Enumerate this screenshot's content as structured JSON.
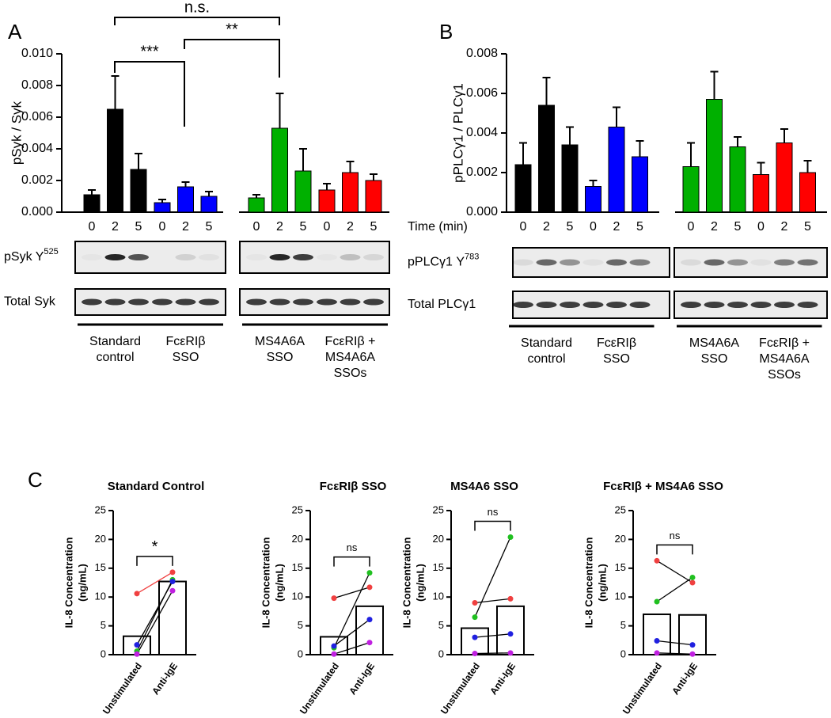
{
  "chart_data": [
    {
      "type": "bar",
      "panel_label": "A",
      "y_label": "pSyk / Syk",
      "ylim": [
        0,
        0.01
      ],
      "yticks": [
        {
          "value": 0,
          "label": "0.000"
        },
        {
          "value": 0.002,
          "label": "0.002"
        },
        {
          "value": 0.004,
          "label": "0.004"
        },
        {
          "value": 0.006,
          "label": "0.006"
        },
        {
          "value": 0.008,
          "label": "0.008"
        },
        {
          "value": 0.01,
          "label": "0.010"
        }
      ],
      "groups": [
        {
          "label": [
            "Standard",
            "control"
          ],
          "color": "#000000",
          "categories": [
            "0",
            "2",
            "5"
          ],
          "values": [
            0.0011,
            0.0065,
            0.0027
          ],
          "errors": [
            0.0003,
            0.0021,
            0.001
          ]
        },
        {
          "label": [
            "FcεRIβ",
            "SSO"
          ],
          "color": "#0000ff",
          "categories": [
            "0",
            "2",
            "5"
          ],
          "values": [
            0.0006,
            0.0016,
            0.001
          ],
          "errors": [
            0.0002,
            0.0003,
            0.0003
          ]
        },
        {
          "label": [
            "MS4A6A",
            "SSO"
          ],
          "color": "#00b000",
          "categories": [
            "0",
            "2",
            "5"
          ],
          "values": [
            0.0009,
            0.0053,
            0.0026
          ],
          "errors": [
            0.0002,
            0.0022,
            0.0014
          ]
        },
        {
          "label": [
            "FcεRIβ +",
            "MS4A6A",
            "SSOs"
          ],
          "color": "#ff0000",
          "categories": [
            "0",
            "2",
            "5"
          ],
          "values": [
            0.0014,
            0.0025,
            0.002
          ],
          "errors": [
            0.0004,
            0.0007,
            0.0004
          ]
        }
      ],
      "significance": [
        "n.s.",
        "***",
        "**"
      ],
      "blot_labels": [
        {
          "text": "pSyk Y",
          "sup": "525"
        },
        {
          "text": "Total Syk"
        }
      ]
    },
    {
      "type": "bar",
      "panel_label": "B",
      "y_label": "pPLCγ1 / PLCγ1",
      "x_label": "Time (min)",
      "ylim": [
        0,
        0.008
      ],
      "yticks": [
        {
          "value": 0,
          "label": "0.000"
        },
        {
          "value": 0.002,
          "label": "0.002"
        },
        {
          "value": 0.004,
          "label": "0.004"
        },
        {
          "value": 0.006,
          "label": "0.006"
        },
        {
          "value": 0.008,
          "label": "0.008"
        }
      ],
      "groups": [
        {
          "label": [
            "Standard",
            "control"
          ],
          "color": "#000000",
          "categories": [
            "0",
            "2",
            "5"
          ],
          "values": [
            0.0024,
            0.0054,
            0.0034
          ],
          "errors": [
            0.0011,
            0.0014,
            0.0009
          ]
        },
        {
          "label": [
            "FcεRIβ",
            "SSO"
          ],
          "color": "#0000ff",
          "categories": [
            "0",
            "2",
            "5"
          ],
          "values": [
            0.0013,
            0.0043,
            0.0028
          ],
          "errors": [
            0.0003,
            0.001,
            0.0008
          ]
        },
        {
          "label": [
            "MS4A6A",
            "SSO"
          ],
          "color": "#00b000",
          "categories": [
            "0",
            "2",
            "5"
          ],
          "values": [
            0.0023,
            0.0057,
            0.0033
          ],
          "errors": [
            0.0012,
            0.0014,
            0.0005
          ]
        },
        {
          "label": [
            "FcεRIβ +",
            "MS4A6A",
            "SSOs"
          ],
          "color": "#ff0000",
          "categories": [
            "0",
            "2",
            "5"
          ],
          "values": [
            0.0019,
            0.0035,
            0.002
          ],
          "errors": [
            0.0006,
            0.0007,
            0.0006
          ]
        }
      ],
      "blot_labels": [
        {
          "text": "pPLCγ1 Y",
          "sup": "783"
        },
        {
          "text": "Total PLCγ1"
        }
      ]
    },
    {
      "type": "paired",
      "panel_label": "C",
      "title": "Standard Control",
      "y_label": [
        "IL-8 Concentration",
        "(ng/mL)"
      ],
      "categories": [
        "Unstimulated",
        "Anti-IgE"
      ],
      "values": [
        3.2,
        12.7
      ],
      "significance": "*",
      "series": [
        {
          "color": "#f04040",
          "values": [
            10.6,
            14.3
          ]
        },
        {
          "color": "#20c020",
          "values": [
            0.6,
            13.0
          ]
        },
        {
          "color": "#2020e0",
          "values": [
            1.7,
            12.7
          ]
        },
        {
          "color": "#c020e0",
          "values": [
            0.1,
            11.1
          ]
        }
      ],
      "ylim": [
        0,
        25
      ],
      "yticks": [
        0,
        5,
        10,
        15,
        20,
        25
      ]
    },
    {
      "type": "paired",
      "title": "FcεRIβ SSO",
      "y_label": [
        "IL-8 Concentration",
        "(ng/mL)"
      ],
      "categories": [
        "Unstimulated",
        "Anti-IgE"
      ],
      "values": [
        3.1,
        8.4
      ],
      "significance": "ns",
      "series": [
        {
          "color": "#f04040",
          "values": [
            9.8,
            11.7
          ]
        },
        {
          "color": "#20c020",
          "values": [
            1.2,
            14.2
          ]
        },
        {
          "color": "#2020e0",
          "values": [
            1.5,
            6.1
          ]
        },
        {
          "color": "#c020e0",
          "values": [
            0.1,
            2.1
          ]
        }
      ],
      "ylim": [
        0,
        25
      ],
      "yticks": [
        0,
        5,
        10,
        15,
        20,
        25
      ]
    },
    {
      "type": "paired",
      "title": "MS4A6 SSO",
      "y_label": [
        "IL-8 Concentration",
        "(ng/mL)"
      ],
      "categories": [
        "Unstimulated",
        "Anti-IgE"
      ],
      "values": [
        4.6,
        8.4
      ],
      "significance": "ns",
      "series": [
        {
          "color": "#f04040",
          "values": [
            9.0,
            9.7
          ]
        },
        {
          "color": "#20c020",
          "values": [
            6.5,
            20.4
          ]
        },
        {
          "color": "#2020e0",
          "values": [
            3.0,
            3.6
          ]
        },
        {
          "color": "#c020e0",
          "values": [
            0.2,
            0.3
          ]
        }
      ],
      "ylim": [
        0,
        25
      ],
      "yticks": [
        0,
        5,
        10,
        15,
        20,
        25
      ]
    },
    {
      "type": "paired",
      "title": "FcεRIβ + MS4A6 SSO",
      "y_label": [
        "IL-8 Concentration",
        "(ng/mL)"
      ],
      "categories": [
        "Unstimulated",
        "Anti-IgE"
      ],
      "values": [
        7.0,
        6.9
      ],
      "significance": "ns",
      "series": [
        {
          "color": "#f04040",
          "values": [
            16.3,
            12.5
          ]
        },
        {
          "color": "#20c020",
          "values": [
            9.2,
            13.4
          ]
        },
        {
          "color": "#2020e0",
          "values": [
            2.4,
            1.7
          ]
        },
        {
          "color": "#c020e0",
          "values": [
            0.3,
            0.1
          ]
        }
      ],
      "ylim": [
        0,
        25
      ],
      "yticks": [
        0,
        5,
        10,
        15,
        20,
        25
      ]
    }
  ]
}
